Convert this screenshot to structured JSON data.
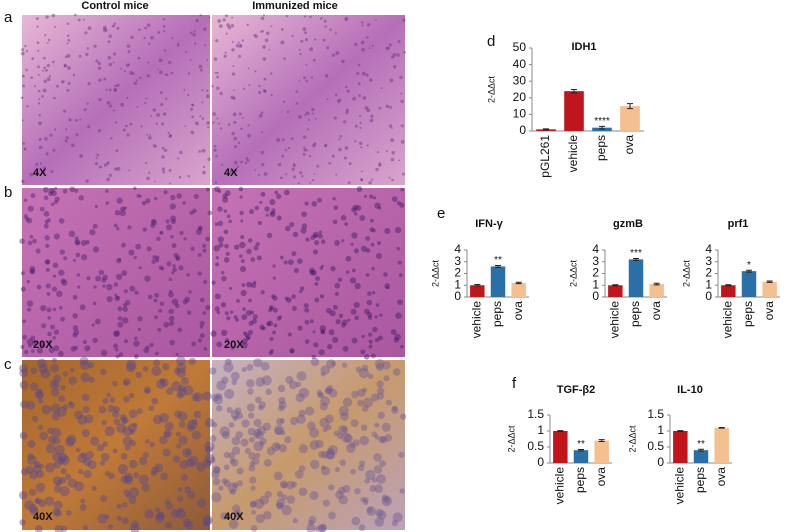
{
  "figure": {
    "columns": [
      "Control mice",
      "Immunized mice"
    ],
    "rows": [
      {
        "letter": "a",
        "magnification": "4X"
      },
      {
        "letter": "b",
        "magnification": "20X"
      },
      {
        "letter": "c",
        "magnification": "40X"
      }
    ]
  },
  "chart_data": [
    {
      "type": "bar",
      "panel": "d",
      "title": "IDH1",
      "ylabel": "2-ΔΔct",
      "categories": [
        "pGL261",
        "vehicle",
        "peps",
        "ova"
      ],
      "values": [
        1,
        24,
        2,
        15
      ],
      "errors": [
        0.3,
        1,
        0.8,
        1.5
      ],
      "colors": [
        "#c0151b",
        "#c0151b",
        "#2a6fa8",
        "#f5c08f"
      ],
      "annotations": [
        {
          "index": 2,
          "text": "****"
        }
      ],
      "ylim": [
        0,
        50
      ],
      "yticks": [
        0,
        10,
        20,
        30,
        40,
        50
      ]
    },
    {
      "type": "bar",
      "panel": "e",
      "title": "IFN-γ",
      "ylabel": "2-ΔΔct",
      "categories": [
        "vehicle",
        "peps",
        "ova"
      ],
      "values": [
        1,
        2.6,
        1.2
      ],
      "errors": [
        0.06,
        0.08,
        0.06
      ],
      "colors": [
        "#c0151b",
        "#2a6fa8",
        "#f5c08f"
      ],
      "annotations": [
        {
          "index": 1,
          "text": "**"
        }
      ],
      "ylim": [
        0,
        4
      ],
      "yticks": [
        0,
        1,
        2,
        3,
        4
      ]
    },
    {
      "type": "bar",
      "title": "gzmB",
      "ylabel": "2-ΔΔct",
      "categories": [
        "vehicle",
        "peps",
        "ova"
      ],
      "values": [
        1,
        3.2,
        1.1
      ],
      "errors": [
        0.04,
        0.08,
        0.07
      ],
      "colors": [
        "#c0151b",
        "#2a6fa8",
        "#f5c08f"
      ],
      "annotations": [
        {
          "index": 1,
          "text": "***"
        }
      ],
      "ylim": [
        0,
        4
      ],
      "yticks": [
        0,
        1,
        2,
        3,
        4
      ]
    },
    {
      "type": "bar",
      "title": "prf1",
      "ylabel": "2-ΔΔct",
      "categories": [
        "vehicle",
        "peps",
        "ova"
      ],
      "values": [
        1,
        2.2,
        1.3
      ],
      "errors": [
        0.04,
        0.08,
        0.06
      ],
      "colors": [
        "#c0151b",
        "#2a6fa8",
        "#f5c08f"
      ],
      "annotations": [
        {
          "index": 1,
          "text": "*"
        }
      ],
      "ylim": [
        0,
        4
      ],
      "yticks": [
        0,
        1,
        2,
        3,
        4
      ]
    },
    {
      "type": "bar",
      "panel": "f",
      "title": "TGF-β2",
      "ylabel": "2-ΔΔct",
      "categories": [
        "vehicle",
        "peps",
        "ova"
      ],
      "values": [
        1,
        0.4,
        0.7
      ],
      "errors": [
        0.01,
        0.02,
        0.03
      ],
      "colors": [
        "#c0151b",
        "#2a6fa8",
        "#f5c08f"
      ],
      "annotations": [
        {
          "index": 1,
          "text": "**"
        }
      ],
      "ylim": [
        0,
        1.5
      ],
      "yticks": [
        0,
        0.5,
        1,
        1.5
      ]
    },
    {
      "type": "bar",
      "title": "IL-10",
      "ylabel": "2-ΔΔct",
      "categories": [
        "vehicle",
        "peps",
        "ova"
      ],
      "values": [
        1,
        0.4,
        1.1
      ],
      "errors": [
        0.01,
        0.03,
        0.01
      ],
      "colors": [
        "#c0151b",
        "#2a6fa8",
        "#f5c08f"
      ],
      "annotations": [
        {
          "index": 1,
          "text": "**"
        }
      ],
      "ylim": [
        0,
        1.5
      ],
      "yticks": [
        0,
        0.5,
        1,
        1.5
      ]
    }
  ]
}
